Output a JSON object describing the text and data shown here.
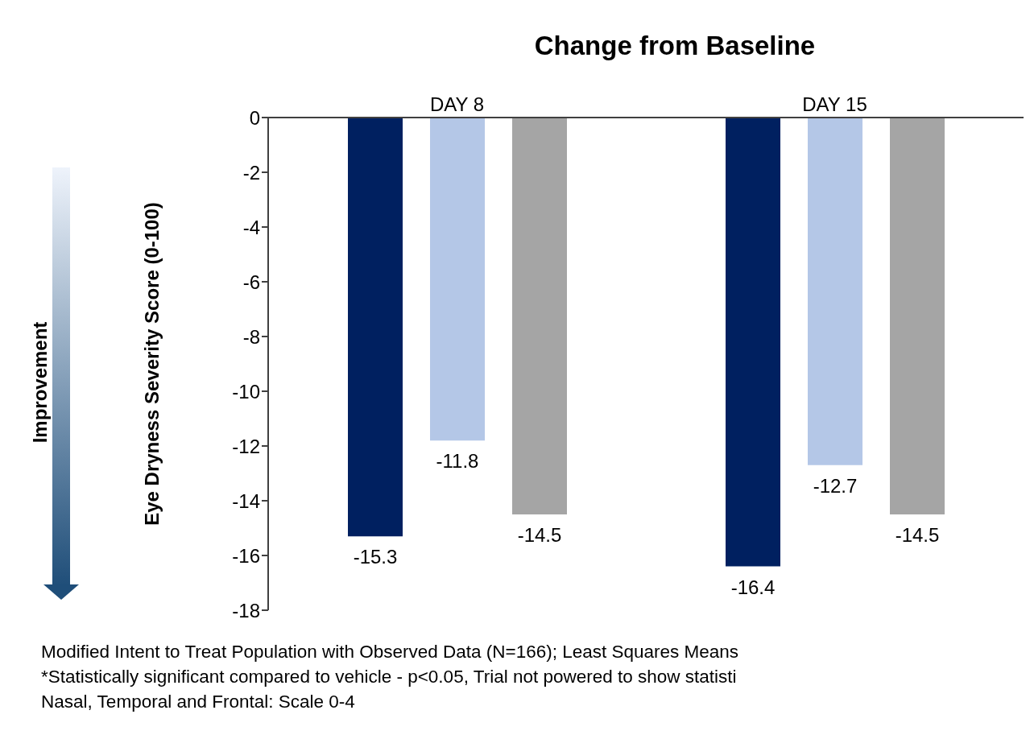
{
  "chart_data": {
    "type": "bar",
    "title": "Change from Baseline",
    "ylabel": "Eye Dryness Severity Score (0-100)",
    "categories": [
      "DAY 8",
      "DAY 15"
    ],
    "series": [
      {
        "color": "#002060",
        "values": [
          -15.3,
          -16.4
        ]
      },
      {
        "color": "#b4c7e7",
        "values": [
          -11.8,
          -12.7
        ]
      },
      {
        "color": "#a5a5a5",
        "values": [
          -14.5,
          -14.5
        ]
      }
    ],
    "ylim": [
      -18,
      0
    ],
    "yticks": [
      0,
      -2,
      -4,
      -6,
      -8,
      -10,
      -12,
      -14,
      -16,
      -18
    ],
    "data_labels": true,
    "annotations": [
      "Improvement",
      "Modified Intent to Treat Population with Observed Data (N=166); Least Squares Means",
      "*Statistically significant compared to vehicle - p<0.05, Trial not powered to show statisti",
      "Nasal, Temporal and Frontal: Scale 0-4"
    ]
  }
}
